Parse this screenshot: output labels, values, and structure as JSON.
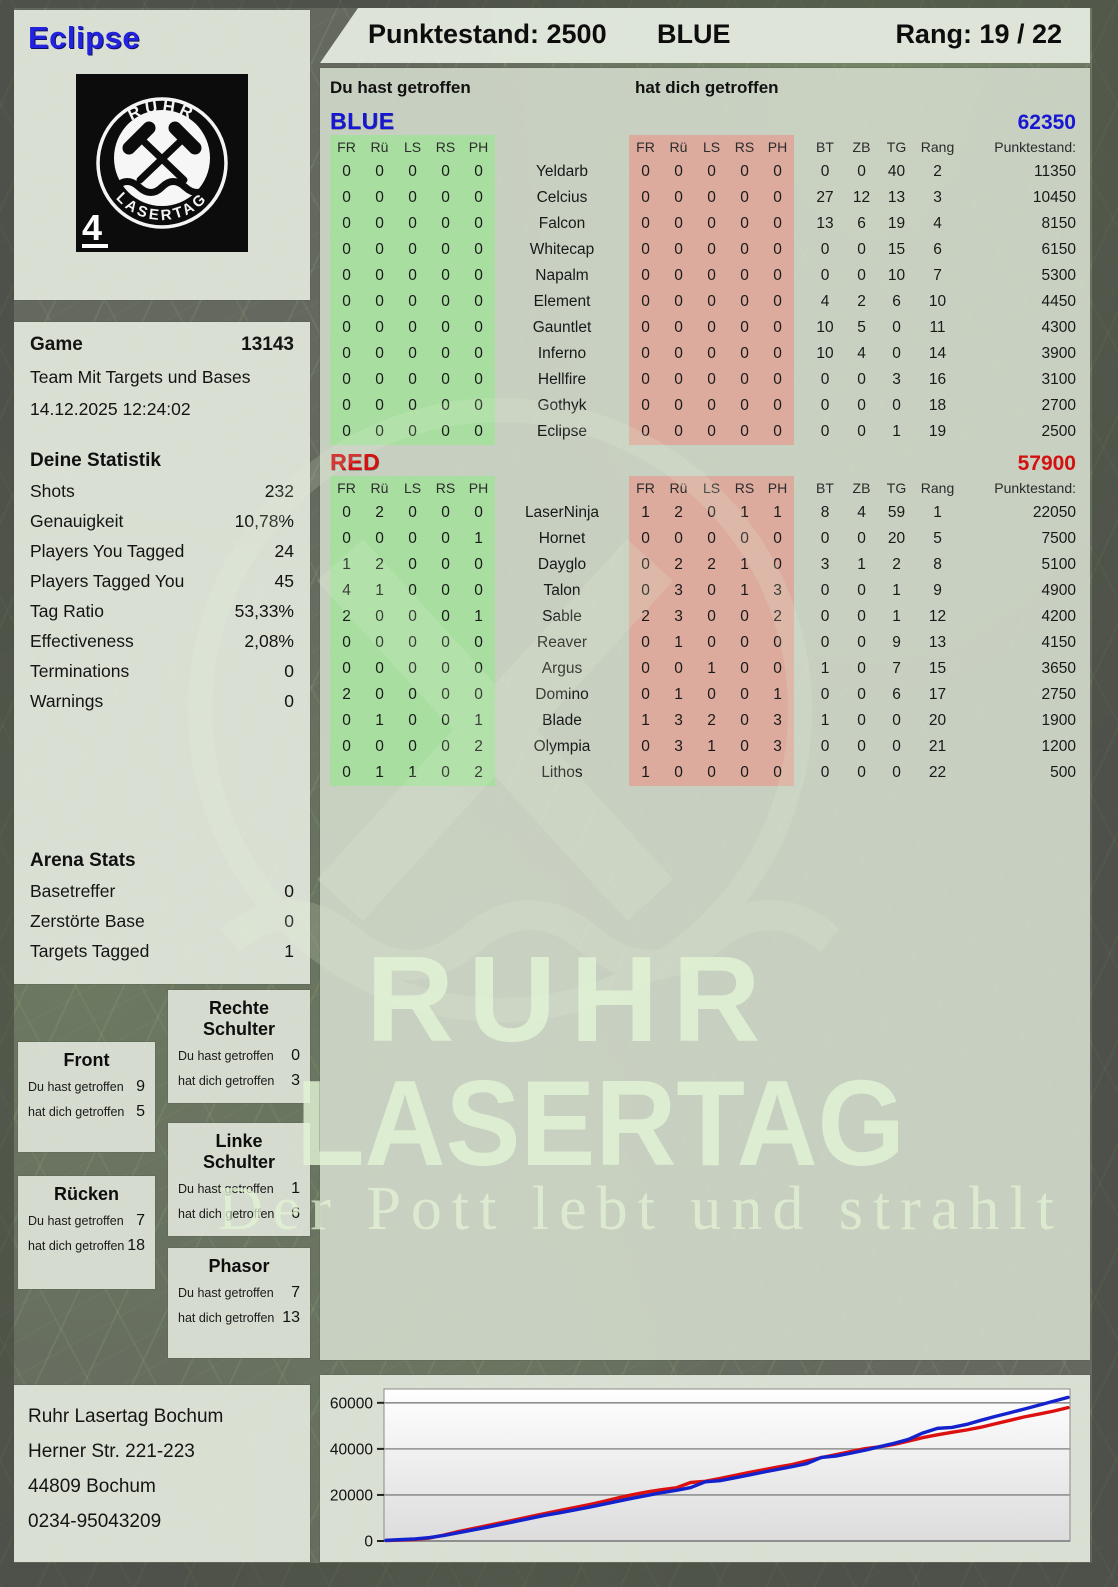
{
  "header": {
    "player": "Eclipse",
    "score_label": "Punktestand: 2500",
    "team": "BLUE",
    "rank_label": "Rang: 19 / 22"
  },
  "logo": {
    "arc_top": "RUHR",
    "arc_bottom": "LASERTAG",
    "badge": "4"
  },
  "game": {
    "label": "Game",
    "number": "13143",
    "mode": "Team Mit Targets und Bases",
    "datetime": "14.12.2025 12:24:02"
  },
  "stats": {
    "title": "Deine Statistik",
    "rows": [
      {
        "label": "Shots",
        "value": "232"
      },
      {
        "label": "Genauigkeit",
        "value": "10,78%"
      },
      {
        "label": "Players You Tagged",
        "value": "24"
      },
      {
        "label": "Players Tagged You",
        "value": "45"
      },
      {
        "label": "Tag Ratio",
        "value": "53,33%"
      },
      {
        "label": "Effectiveness",
        "value": "2,08%"
      },
      {
        "label": "Terminations",
        "value": "0"
      },
      {
        "label": "Warnings",
        "value": "0"
      }
    ]
  },
  "arena": {
    "title": "Arena Stats",
    "rows": [
      {
        "label": "Basetreffer",
        "value": "0"
      },
      {
        "label": "Zerstörte Base",
        "value": "0"
      },
      {
        "label": "Targets Tagged",
        "value": "1"
      }
    ]
  },
  "columns": {
    "hit": "Du hast getroffen",
    "got": "hat dich getroffen",
    "sub": [
      "FR",
      "Rü",
      "LS",
      "RS",
      "PH"
    ],
    "tail": [
      "BT",
      "ZB",
      "TG",
      "Rang",
      "Punktestand:"
    ]
  },
  "teams": [
    {
      "name": "BLUE",
      "total": "62350",
      "color": "#1717d2",
      "players": [
        {
          "name": "Yeldarb",
          "hit": [
            0,
            0,
            0,
            0,
            0
          ],
          "got": [
            0,
            0,
            0,
            0,
            0
          ],
          "tail": [
            0,
            0,
            40,
            2
          ],
          "punkte": "11350"
        },
        {
          "name": "Celcius",
          "hit": [
            0,
            0,
            0,
            0,
            0
          ],
          "got": [
            0,
            0,
            0,
            0,
            0
          ],
          "tail": [
            27,
            12,
            13,
            3
          ],
          "punkte": "10450"
        },
        {
          "name": "Falcon",
          "hit": [
            0,
            0,
            0,
            0,
            0
          ],
          "got": [
            0,
            0,
            0,
            0,
            0
          ],
          "tail": [
            13,
            6,
            19,
            4
          ],
          "punkte": "8150"
        },
        {
          "name": "Whitecap",
          "hit": [
            0,
            0,
            0,
            0,
            0
          ],
          "got": [
            0,
            0,
            0,
            0,
            0
          ],
          "tail": [
            0,
            0,
            15,
            6
          ],
          "punkte": "6150"
        },
        {
          "name": "Napalm",
          "hit": [
            0,
            0,
            0,
            0,
            0
          ],
          "got": [
            0,
            0,
            0,
            0,
            0
          ],
          "tail": [
            0,
            0,
            10,
            7
          ],
          "punkte": "5300"
        },
        {
          "name": "Element",
          "hit": [
            0,
            0,
            0,
            0,
            0
          ],
          "got": [
            0,
            0,
            0,
            0,
            0
          ],
          "tail": [
            4,
            2,
            6,
            10
          ],
          "punkte": "4450"
        },
        {
          "name": "Gauntlet",
          "hit": [
            0,
            0,
            0,
            0,
            0
          ],
          "got": [
            0,
            0,
            0,
            0,
            0
          ],
          "tail": [
            10,
            5,
            0,
            11
          ],
          "punkte": "4300"
        },
        {
          "name": "Inferno",
          "hit": [
            0,
            0,
            0,
            0,
            0
          ],
          "got": [
            0,
            0,
            0,
            0,
            0
          ],
          "tail": [
            10,
            4,
            0,
            14
          ],
          "punkte": "3900"
        },
        {
          "name": "Hellfire",
          "hit": [
            0,
            0,
            0,
            0,
            0
          ],
          "got": [
            0,
            0,
            0,
            0,
            0
          ],
          "tail": [
            0,
            0,
            3,
            16
          ],
          "punkte": "3100"
        },
        {
          "name": "Gothyk",
          "hit": [
            0,
            0,
            0,
            0,
            0
          ],
          "got": [
            0,
            0,
            0,
            0,
            0
          ],
          "tail": [
            0,
            0,
            0,
            18
          ],
          "punkte": "2700"
        },
        {
          "name": "Eclipse",
          "hit": [
            0,
            0,
            0,
            0,
            0
          ],
          "got": [
            0,
            0,
            0,
            0,
            0
          ],
          "tail": [
            0,
            0,
            1,
            19
          ],
          "punkte": "2500"
        }
      ]
    },
    {
      "name": "RED",
      "total": "57900",
      "color": "#d31111",
      "players": [
        {
          "name": "LaserNinja",
          "hit": [
            0,
            2,
            0,
            0,
            0
          ],
          "got": [
            1,
            2,
            0,
            1,
            1
          ],
          "tail": [
            8,
            4,
            59,
            1
          ],
          "punkte": "22050"
        },
        {
          "name": "Hornet",
          "hit": [
            0,
            0,
            0,
            0,
            1
          ],
          "got": [
            0,
            0,
            0,
            0,
            0
          ],
          "tail": [
            0,
            0,
            20,
            5
          ],
          "punkte": "7500"
        },
        {
          "name": "Dayglo",
          "hit": [
            1,
            2,
            0,
            0,
            0
          ],
          "got": [
            0,
            2,
            2,
            1,
            0
          ],
          "tail": [
            3,
            1,
            2,
            8
          ],
          "punkte": "5100"
        },
        {
          "name": "Talon",
          "hit": [
            4,
            1,
            0,
            0,
            0
          ],
          "got": [
            0,
            3,
            0,
            1,
            3
          ],
          "tail": [
            0,
            0,
            1,
            9
          ],
          "punkte": "4900"
        },
        {
          "name": "Sable",
          "hit": [
            2,
            0,
            0,
            0,
            1
          ],
          "got": [
            2,
            3,
            0,
            0,
            2
          ],
          "tail": [
            0,
            0,
            1,
            12
          ],
          "punkte": "4200"
        },
        {
          "name": "Reaver",
          "hit": [
            0,
            0,
            0,
            0,
            0
          ],
          "got": [
            0,
            1,
            0,
            0,
            0
          ],
          "tail": [
            0,
            0,
            9,
            13
          ],
          "punkte": "4150"
        },
        {
          "name": "Argus",
          "hit": [
            0,
            0,
            0,
            0,
            0
          ],
          "got": [
            0,
            0,
            1,
            0,
            0
          ],
          "tail": [
            1,
            0,
            7,
            15
          ],
          "punkte": "3650"
        },
        {
          "name": "Domino",
          "hit": [
            2,
            0,
            0,
            0,
            0
          ],
          "got": [
            0,
            1,
            0,
            0,
            1
          ],
          "tail": [
            0,
            0,
            6,
            17
          ],
          "punkte": "2750"
        },
        {
          "name": "Blade",
          "hit": [
            0,
            1,
            0,
            0,
            1
          ],
          "got": [
            1,
            3,
            2,
            0,
            3
          ],
          "tail": [
            1,
            0,
            0,
            20
          ],
          "punkte": "1900"
        },
        {
          "name": "Olympia",
          "hit": [
            0,
            0,
            0,
            0,
            2
          ],
          "got": [
            0,
            3,
            1,
            0,
            3
          ],
          "tail": [
            0,
            0,
            0,
            21
          ],
          "punkte": "1200"
        },
        {
          "name": "Lithos",
          "hit": [
            0,
            1,
            1,
            0,
            2
          ],
          "got": [
            1,
            0,
            0,
            0,
            0
          ],
          "tail": [
            0,
            0,
            0,
            22
          ],
          "punkte": "500"
        }
      ]
    }
  ],
  "body_panels": {
    "hit_label": "Du hast getroffen",
    "got_label": "hat dich getroffen",
    "front": {
      "title": "Front",
      "hit": "9",
      "got": "5"
    },
    "ruecken": {
      "title": "Rücken",
      "hit": "7",
      "got": "18"
    },
    "rechte": {
      "title": "Rechte Schulter",
      "hit": "0",
      "got": "3"
    },
    "linke": {
      "title": "Linke Schulter",
      "hit": "1",
      "got": "6"
    },
    "phasor": {
      "title": "Phasor",
      "hit": "7",
      "got": "13"
    }
  },
  "address": {
    "lines": [
      "Ruhr Lasertag Bochum",
      "Herner Str. 221-223",
      "44809 Bochum",
      "0234-95043209"
    ]
  },
  "watermark": {
    "line1": "RUHR",
    "line2": "LASERTAG",
    "line3": "Der Pott lebt und strahlt"
  },
  "colors": {
    "blue": "#1717d2",
    "red": "#d31111",
    "cell_green": "#a8dfa0",
    "cell_red": "#dcab9e",
    "panel": "#dde4d7",
    "background": "#64685e"
  },
  "chart_data": {
    "type": "line",
    "title": "",
    "xlabel": "",
    "ylabel": "",
    "ylim": [
      0,
      66000
    ],
    "yticks": [
      0,
      20000,
      40000,
      60000
    ],
    "grid": true,
    "legend": "none",
    "series": [
      {
        "name": "BLUE",
        "color": "#1322cc",
        "values": [
          300,
          600,
          900,
          1500,
          2400,
          3600,
          4800,
          6000,
          7300,
          8600,
          9900,
          11200,
          12300,
          13500,
          14700,
          16000,
          17300,
          18600,
          19800,
          21000,
          22000,
          23200,
          25700,
          26200,
          27400,
          28600,
          29900,
          31100,
          32300,
          33600,
          36300,
          36900,
          38100,
          39400,
          40900,
          42400,
          44100,
          46900,
          48900,
          49300,
          50600,
          52400,
          54100,
          55700,
          57300,
          59000,
          60700,
          62350
        ]
      },
      {
        "name": "RED",
        "color": "#dd1010",
        "values": [
          200,
          400,
          700,
          1300,
          2600,
          4100,
          5400,
          6700,
          8000,
          9300,
          10700,
          12000,
          13300,
          14500,
          15800,
          17200,
          18700,
          20100,
          21300,
          22300,
          23100,
          25400,
          25900,
          27100,
          28400,
          29700,
          30900,
          32100,
          33200,
          34800,
          36200,
          37500,
          38800,
          40100,
          40900,
          41900,
          43400,
          44900,
          46100,
          47200,
          48200,
          49400,
          50900,
          52400,
          53900,
          55100,
          56400,
          57900
        ]
      }
    ]
  }
}
